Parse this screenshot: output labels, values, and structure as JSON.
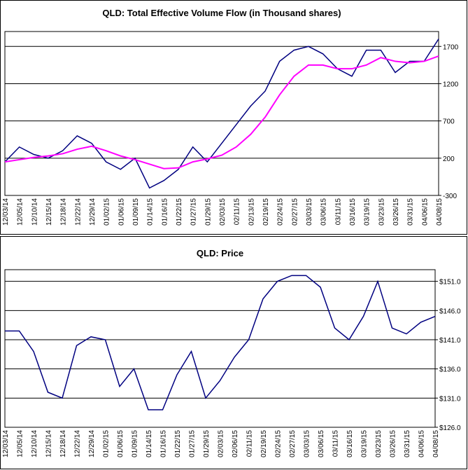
{
  "chart_data": [
    {
      "type": "line",
      "title": "QLD: Total Effective Volume Flow (in Thousand shares)",
      "categories": [
        "12/03/14",
        "12/05/14",
        "12/10/14",
        "12/15/14",
        "12/18/14",
        "12/22/14",
        "12/29/14",
        "01/02/15",
        "01/06/15",
        "01/09/15",
        "01/14/15",
        "01/16/15",
        "01/22/15",
        "01/27/15",
        "01/29/15",
        "02/03/15",
        "02/11/15",
        "02/13/15",
        "02/19/15",
        "02/24/15",
        "02/27/15",
        "03/03/15",
        "03/06/15",
        "03/11/15",
        "03/16/15",
        "03/19/15",
        "03/23/15",
        "03/26/15",
        "03/31/15",
        "04/06/15",
        "04/08/15"
      ],
      "series": [
        {
          "color": "#000080",
          "values": [
            150,
            350,
            250,
            200,
            300,
            500,
            400,
            150,
            50,
            200,
            -200,
            -100,
            50,
            350,
            150,
            400,
            650,
            900,
            1100,
            1500,
            1650,
            1700,
            1600,
            1400,
            1300,
            1650,
            1650,
            1350,
            1500,
            1500,
            1800
          ]
        },
        {
          "color": "#ff00ff",
          "values": [
            150,
            180,
            210,
            230,
            260,
            320,
            360,
            300,
            230,
            180,
            120,
            60,
            70,
            150,
            190,
            240,
            350,
            520,
            750,
            1050,
            1300,
            1450,
            1450,
            1400,
            1400,
            1450,
            1550,
            1500,
            1480,
            1500,
            1570
          ]
        }
      ],
      "ylim": [
        -300,
        1900
      ],
      "yticks": [
        -300,
        200,
        700,
        1200,
        1700
      ],
      "grid": true
    },
    {
      "type": "line",
      "title": "QLD: Price",
      "categories": [
        "12/03/14",
        "12/05/14",
        "12/10/14",
        "12/15/14",
        "12/18/14",
        "12/22/14",
        "12/29/14",
        "01/02/15",
        "01/06/15",
        "01/09/15",
        "01/14/15",
        "01/16/15",
        "01/22/15",
        "01/27/15",
        "01/29/15",
        "02/03/15",
        "02/06/15",
        "02/11/15",
        "02/19/15",
        "02/24/15",
        "02/27/15",
        "03/03/15",
        "03/06/15",
        "03/11/15",
        "03/16/15",
        "03/19/15",
        "03/23/15",
        "03/26/15",
        "03/31/15",
        "04/06/15",
        "04/08/15"
      ],
      "series": [
        {
          "color": "#000080",
          "values": [
            142.5,
            142.5,
            139,
            132,
            131,
            140,
            141.5,
            141,
            133,
            136,
            129,
            129,
            135,
            139,
            131,
            134,
            138,
            141,
            148,
            151,
            152,
            152,
            150,
            143,
            141,
            145,
            151,
            143,
            142,
            144,
            145
          ]
        }
      ],
      "ylim": [
        126,
        153
      ],
      "yticks": [
        {
          "value": 126,
          "label": "$126.0"
        },
        {
          "value": 131,
          "label": "$131.0"
        },
        {
          "value": 136,
          "label": "$136.0"
        },
        {
          "value": 141,
          "label": "$141.0"
        },
        {
          "value": 146,
          "label": "$146.0"
        },
        {
          "value": 151,
          "label": "$151.0"
        }
      ],
      "grid": true
    }
  ]
}
